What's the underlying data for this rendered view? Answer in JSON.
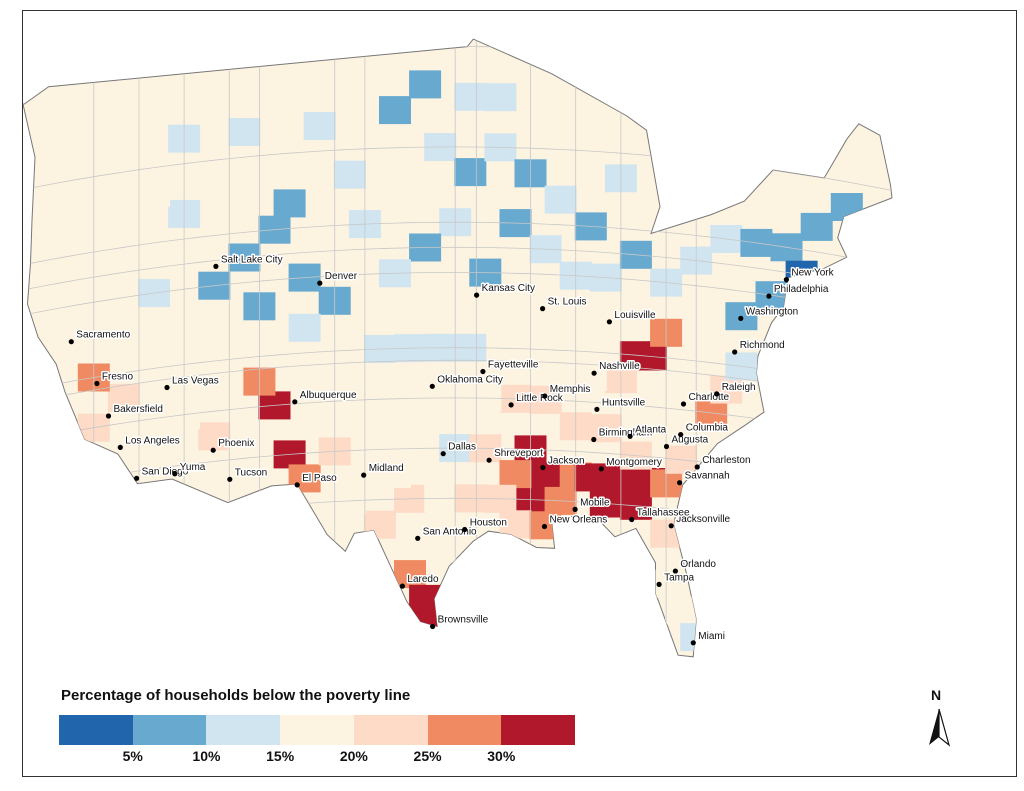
{
  "legend": {
    "title": "Percentage of households below the poverty line",
    "ticks": [
      "5%",
      "10%",
      "15%",
      "20%",
      "25%",
      "30%"
    ],
    "colors": [
      "#2166ac",
      "#67a9cf",
      "#d1e5f0",
      "#fdf3e1",
      "#fddbc7",
      "#ef8a62",
      "#b2182b"
    ]
  },
  "north_arrow": {
    "label": "N",
    "icon": "north-arrow-icon"
  },
  "map": {
    "base_color": "#fdf3e1",
    "border_color": "#c8c8c8"
  },
  "cities": [
    {
      "name": "Sacramento",
      "lon": -121.49,
      "lat": 38.58
    },
    {
      "name": "Fresno",
      "lon": -119.79,
      "lat": 36.74
    },
    {
      "name": "Bakersfield",
      "lon": -119.02,
      "lat": 35.37
    },
    {
      "name": "Los Angeles",
      "lon": -118.24,
      "lat": 34.05
    },
    {
      "name": "San Diego",
      "lon": -117.16,
      "lat": 32.72
    },
    {
      "name": "Yuma",
      "lon": -114.62,
      "lat": 32.69
    },
    {
      "name": "Las Vegas",
      "lon": -115.14,
      "lat": 36.17
    },
    {
      "name": "Phoenix",
      "lon": -112.07,
      "lat": 33.45
    },
    {
      "name": "Tucson",
      "lon": -110.97,
      "lat": 32.22
    },
    {
      "name": "Salt Lake City",
      "lon": -111.89,
      "lat": 40.76
    },
    {
      "name": "Denver",
      "lon": -104.99,
      "lat": 39.74
    },
    {
      "name": "Albuquerque",
      "lon": -106.65,
      "lat": 35.08
    },
    {
      "name": "El Paso",
      "lon": -106.49,
      "lat": 31.76
    },
    {
      "name": "Midland",
      "lon": -102.08,
      "lat": 32.0
    },
    {
      "name": "Oklahoma City",
      "lon": -97.52,
      "lat": 35.47
    },
    {
      "name": "Dallas",
      "lon": -96.8,
      "lat": 32.78
    },
    {
      "name": "San Antonio",
      "lon": -98.49,
      "lat": 29.42
    },
    {
      "name": "Houston",
      "lon": -95.37,
      "lat": 29.76
    },
    {
      "name": "Laredo",
      "lon": -99.51,
      "lat": 27.53
    },
    {
      "name": "Brownsville",
      "lon": -97.5,
      "lat": 25.9
    },
    {
      "name": "Kansas City",
      "lon": -94.58,
      "lat": 39.1
    },
    {
      "name": "Fayetteville",
      "lon": -94.16,
      "lat": 36.06
    },
    {
      "name": "St. Louis",
      "lon": -90.2,
      "lat": 38.63
    },
    {
      "name": "Little Rock",
      "lon": -92.29,
      "lat": 34.75
    },
    {
      "name": "Memphis",
      "lon": -90.05,
      "lat": 35.15
    },
    {
      "name": "Shreveport",
      "lon": -93.75,
      "lat": 32.53
    },
    {
      "name": "Jackson",
      "lon": -90.18,
      "lat": 32.3
    },
    {
      "name": "New Orleans",
      "lon": -90.07,
      "lat": 29.95
    },
    {
      "name": "Mobile",
      "lon": -88.04,
      "lat": 30.69
    },
    {
      "name": "Louisville",
      "lon": -85.76,
      "lat": 38.25
    },
    {
      "name": "Nashville",
      "lon": -86.78,
      "lat": 36.16
    },
    {
      "name": "Huntsville",
      "lon": -86.59,
      "lat": 34.73
    },
    {
      "name": "Birmingham",
      "lon": -86.8,
      "lat": 33.52
    },
    {
      "name": "Montgomery",
      "lon": -86.3,
      "lat": 32.37
    },
    {
      "name": "Atlanta",
      "lon": -84.39,
      "lat": 33.75
    },
    {
      "name": "Augusta",
      "lon": -81.97,
      "lat": 33.47
    },
    {
      "name": "Columbia",
      "lon": -81.03,
      "lat": 34.0
    },
    {
      "name": "Charleston",
      "lon": -79.93,
      "lat": 32.78
    },
    {
      "name": "Savannah",
      "lon": -81.1,
      "lat": 32.08
    },
    {
      "name": "Jacksonville",
      "lon": -81.66,
      "lat": 30.33
    },
    {
      "name": "Tallahassee",
      "lon": -84.28,
      "lat": 30.44
    },
    {
      "name": "Orlando",
      "lon": -81.38,
      "lat": 28.54
    },
    {
      "name": "Tampa",
      "lon": -82.46,
      "lat": 27.95
    },
    {
      "name": "Miami",
      "lon": -80.19,
      "lat": 25.76
    },
    {
      "name": "Charlotte",
      "lon": -80.84,
      "lat": 35.23
    },
    {
      "name": "Raleigh",
      "lon": -78.64,
      "lat": 35.78
    },
    {
      "name": "Richmond",
      "lon": -77.44,
      "lat": 37.54
    },
    {
      "name": "Washington",
      "lon": -77.04,
      "lat": 38.91
    },
    {
      "name": "Philadelphia",
      "lon": -75.17,
      "lat": 39.95
    },
    {
      "name": "New York",
      "lon": -74.01,
      "lat": 40.71
    }
  ]
}
